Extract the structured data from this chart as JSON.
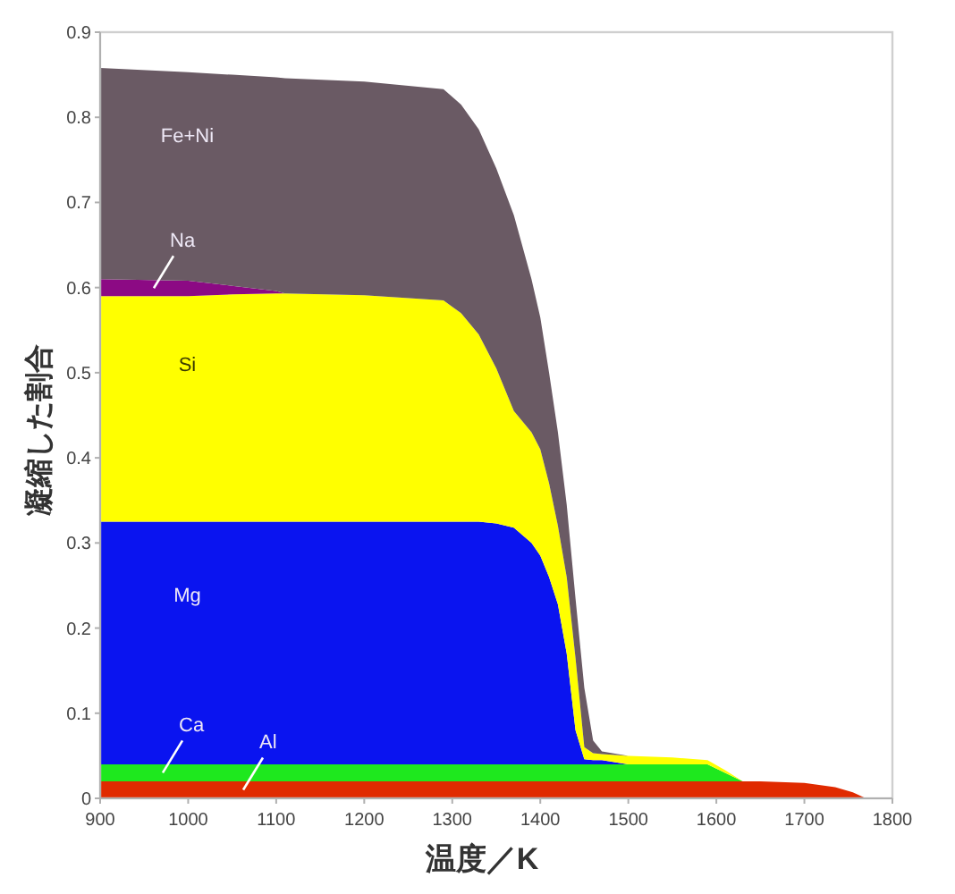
{
  "chart_data": {
    "type": "area",
    "stacked": true,
    "xlabel": "温度／K",
    "ylabel": "凝縮した割合",
    "x": [
      900,
      1000,
      1050,
      1100,
      1110,
      1200,
      1290,
      1310,
      1330,
      1350,
      1370,
      1390,
      1400,
      1410,
      1420,
      1430,
      1440,
      1450,
      1460,
      1470,
      1500,
      1550,
      1590,
      1610,
      1630,
      1650,
      1700,
      1735,
      1755,
      1770
    ],
    "xlim": [
      900,
      1800
    ],
    "xticks": [
      900,
      1000,
      1100,
      1200,
      1300,
      1400,
      1500,
      1600,
      1700,
      1800
    ],
    "ylim": [
      0,
      0.9
    ],
    "yticks": [
      0,
      0.1,
      0.2,
      0.3,
      0.4,
      0.5,
      0.6,
      0.7,
      0.8,
      0.9
    ],
    "series": [
      {
        "name": "Al",
        "color": "#e02a00",
        "values": [
          0.02,
          0.02,
          0.02,
          0.02,
          0.02,
          0.02,
          0.02,
          0.02,
          0.02,
          0.02,
          0.02,
          0.02,
          0.02,
          0.02,
          0.02,
          0.02,
          0.02,
          0.02,
          0.02,
          0.02,
          0.02,
          0.02,
          0.02,
          0.02,
          0.02,
          0.02,
          0.018,
          0.013,
          0.007,
          0
        ]
      },
      {
        "name": "Ca",
        "color": "#1ee81e",
        "values": [
          0.02,
          0.02,
          0.02,
          0.02,
          0.02,
          0.02,
          0.02,
          0.02,
          0.02,
          0.02,
          0.02,
          0.02,
          0.02,
          0.02,
          0.02,
          0.02,
          0.02,
          0.02,
          0.02,
          0.02,
          0.02,
          0.02,
          0.02,
          0.01,
          0,
          0,
          0,
          0,
          0,
          0
        ]
      },
      {
        "name": "Mg",
        "color": "#0a14f0",
        "values": [
          0.285,
          0.285,
          0.285,
          0.285,
          0.285,
          0.285,
          0.285,
          0.285,
          0.285,
          0.283,
          0.278,
          0.26,
          0.245,
          0.22,
          0.188,
          0.13,
          0.04,
          0.006,
          0.005,
          0.005,
          0,
          0,
          0,
          0,
          0,
          0,
          0,
          0,
          0,
          0
        ]
      },
      {
        "name": "Si",
        "color": "#ffff00",
        "values": [
          0.265,
          0.265,
          0.267,
          0.268,
          0.268,
          0.266,
          0.26,
          0.245,
          0.22,
          0.182,
          0.137,
          0.13,
          0.125,
          0.11,
          0.092,
          0.09,
          0.085,
          0.014,
          0.008,
          0.007,
          0.01,
          0.008,
          0.005,
          0.003,
          0,
          0,
          0,
          0,
          0,
          0
        ]
      },
      {
        "name": "Na",
        "color": "#8c0a84",
        "values": [
          0.02,
          0.018,
          0.01,
          0.003,
          0,
          0,
          0,
          0,
          0,
          0,
          0,
          0,
          0,
          0,
          0,
          0,
          0,
          0,
          0,
          0,
          0,
          0,
          0,
          0,
          0,
          0,
          0,
          0,
          0,
          0
        ]
      },
      {
        "name": "Fe+Ni",
        "color": "#6a5a64",
        "values": [
          0.248,
          0.245,
          0.248,
          0.251,
          0.253,
          0.251,
          0.248,
          0.245,
          0.241,
          0.235,
          0.23,
          0.18,
          0.155,
          0.13,
          0.11,
          0.085,
          0.07,
          0.07,
          0.015,
          0.003,
          0,
          0,
          0,
          0,
          0,
          0,
          0,
          0,
          0,
          0
        ]
      }
    ]
  }
}
